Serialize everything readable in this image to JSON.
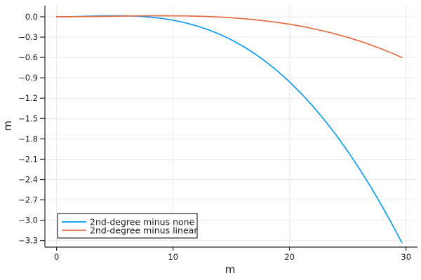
{
  "chart_data": {
    "type": "line",
    "title": "",
    "xlabel": "m",
    "ylabel": "m",
    "xlim": [
      -1.0,
      30.8
    ],
    "ylim": [
      -3.396,
      0.165
    ],
    "grid": true,
    "legend_position": "bottom-left",
    "x_ticks": {
      "values": [
        0,
        10,
        20,
        30
      ],
      "labels": [
        "0",
        "10",
        "20",
        "30"
      ]
    },
    "y_ticks": {
      "values": [
        0.0,
        -0.3,
        -0.6,
        -0.9,
        -1.2,
        -1.5,
        -1.8,
        -2.1,
        -2.4,
        -2.7,
        -3.0,
        -3.3
      ],
      "labels": [
        "0.0",
        "−0.3",
        "−0.6",
        "−0.9",
        "−1.2",
        "−1.5",
        "−1.8",
        "−2.1",
        "−2.4",
        "−2.7",
        "−3.0",
        "−3.3"
      ]
    },
    "series": [
      {
        "name": "2nd-degree minus none",
        "color": "#0d9af2",
        "x": [
          0,
          1,
          2,
          3,
          4,
          5,
          6,
          7,
          8,
          9,
          10,
          11,
          12,
          13,
          14,
          15,
          16,
          17,
          18,
          19,
          20,
          21,
          22,
          23,
          24,
          25,
          26,
          27,
          28,
          29,
          29.64
        ],
        "y": [
          0,
          0.0016,
          0.0054,
          0.01,
          0.0138,
          0.0156,
          0.0141,
          0.0079,
          -0.004,
          -0.023,
          -0.05,
          -0.086,
          -0.1321,
          -0.1891,
          -0.2579,
          -0.3394,
          -0.4341,
          -0.543,
          -0.6666,
          -0.8054,
          -0.96,
          -1.1309,
          -1.3185,
          -1.5231,
          -1.745,
          -1.9845,
          -2.2418,
          -2.517,
          -2.8102,
          -3.1214,
          -3.33
        ]
      },
      {
        "name": "2nd-degree minus linear",
        "color": "#e26e46",
        "x": [
          0,
          1,
          2,
          3,
          4,
          5,
          6,
          7,
          8,
          9,
          10,
          11,
          12,
          13,
          14,
          15,
          16,
          17,
          18,
          19,
          20,
          21,
          22,
          23,
          24,
          25,
          26,
          27,
          28,
          29,
          29.64
        ],
        "y": [
          0,
          0.0005,
          0.0019,
          0.004,
          0.0064,
          0.009,
          0.0114,
          0.0135,
          0.0149,
          0.0154,
          0.0148,
          0.0128,
          0.0091,
          0.0036,
          -0.0041,
          -0.0143,
          -0.0271,
          -0.0428,
          -0.0617,
          -0.084,
          -0.11,
          -0.1399,
          -0.174,
          -0.2126,
          -0.2559,
          -0.3041,
          -0.3574,
          -0.4163,
          -0.481,
          -0.5515,
          -0.5999
        ]
      }
    ]
  },
  "style": {
    "spine_color": "#26262a",
    "grid_color": "#e9e9e9",
    "tick_label_color": "#1a1a1a",
    "legend_border_color": "#2b2b2b",
    "legend_bg_color": "#ffffff"
  }
}
